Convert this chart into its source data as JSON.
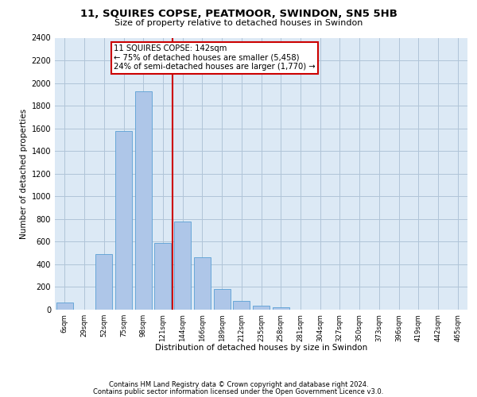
{
  "title1": "11, SQUIRES COPSE, PEATMOOR, SWINDON, SN5 5HB",
  "title2": "Size of property relative to detached houses in Swindon",
  "xlabel": "Distribution of detached houses by size in Swindon",
  "ylabel": "Number of detached properties",
  "categories": [
    "6sqm",
    "29sqm",
    "52sqm",
    "75sqm",
    "98sqm",
    "121sqm",
    "144sqm",
    "166sqm",
    "189sqm",
    "212sqm",
    "235sqm",
    "258sqm",
    "281sqm",
    "304sqm",
    "327sqm",
    "350sqm",
    "373sqm",
    "396sqm",
    "419sqm",
    "442sqm",
    "465sqm"
  ],
  "values": [
    60,
    0,
    490,
    1580,
    1930,
    590,
    780,
    460,
    185,
    80,
    35,
    20,
    0,
    0,
    0,
    0,
    0,
    0,
    0,
    0,
    0
  ],
  "bar_color": "#aec6e8",
  "bar_edge_color": "#5a9fd4",
  "vline_x": 5.5,
  "vline_color": "#cc0000",
  "annotation_text": "11 SQUIRES COPSE: 142sqm\n← 75% of detached houses are smaller (5,458)\n24% of semi-detached houses are larger (1,770) →",
  "annotation_box_edgecolor": "#cc0000",
  "ylim": [
    0,
    2400
  ],
  "yticks": [
    0,
    200,
    400,
    600,
    800,
    1000,
    1200,
    1400,
    1600,
    1800,
    2000,
    2200,
    2400
  ],
  "grid_color": "#b0c4d8",
  "bg_color": "#dce9f5",
  "footer1": "Contains HM Land Registry data © Crown copyright and database right 2024.",
  "footer2": "Contains public sector information licensed under the Open Government Licence v3.0."
}
